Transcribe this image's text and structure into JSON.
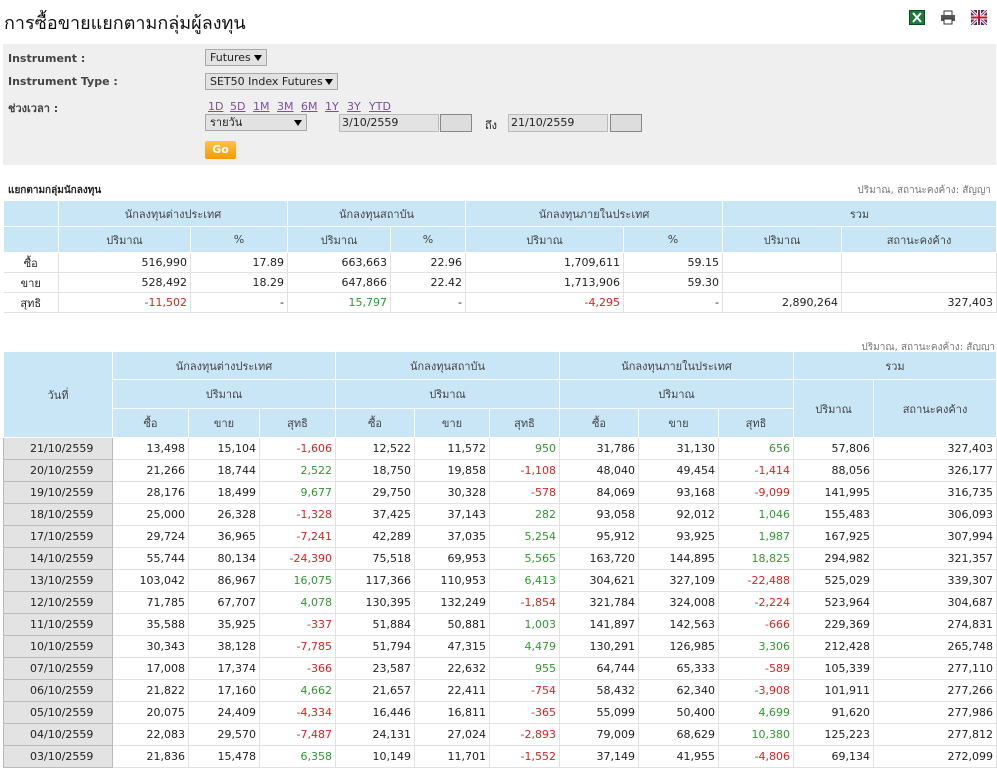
{
  "header": {
    "title": "การซื้อขายแยกตามกลุ่มผู้ลงทุน"
  },
  "form": {
    "instrument": {
      "label": "Instrument :",
      "value": "Futures"
    },
    "instrument_type": {
      "label": "Instrument Type :",
      "value": "SET50 Index Futures"
    },
    "period": {
      "label": "ช่วงเวลา :",
      "ranges": [
        "1D",
        "5D",
        "1M",
        "3M",
        "6M",
        "1Y",
        "3Y",
        "YTD"
      ],
      "interval": "รายวัน",
      "from": "3/10/2559",
      "to_label": "ถึง",
      "to": "21/10/2559"
    },
    "button": "Go"
  },
  "summary": {
    "title": "แยกตามกลุ่มนักลงทุน",
    "unit_note": "ปริมาณ, สถานะคงค้าง: สัญญา",
    "groups": [
      "นักลงทุนต่างประเทศ",
      "นักลงทุนสถาบัน",
      "นักลงทุนภายในประเทศ",
      "รวม"
    ],
    "columns": [
      "ปริมาณ",
      "%",
      "ปริมาณ",
      "%",
      "ปริมาณ",
      "%",
      "ปริมาณ",
      "สถานะคงค้าง"
    ],
    "rows": [
      {
        "label": "ซื้อ",
        "cells": [
          "516,990",
          "17.89",
          "663,663",
          "22.96",
          "1,709,611",
          "59.15"
        ]
      },
      {
        "label": "ขาย",
        "cells": [
          "528,492",
          "18.29",
          "647,866",
          "22.42",
          "1,713,906",
          "59.30"
        ]
      },
      {
        "label": "สุทธิ",
        "cells": [
          "-11,502",
          "-",
          "15,797",
          "-",
          "-4,295",
          "-",
          "2,890,264",
          "327,403"
        ]
      }
    ]
  },
  "daily": {
    "unit_note": "ปริมาณ, สถานะคงค้าง: สัญญา",
    "date_header": "วันที่",
    "groups": [
      "นักลงทุนต่างประเทศ",
      "นักลงทุนสถาบัน",
      "นักลงทุนภายในประเทศ",
      "รวม"
    ],
    "volume_headers": [
      "ปริมาณ",
      "ปริมาณ",
      "ปริมาณ"
    ],
    "side_headers": [
      "ซื้อ",
      "ขาย",
      "สุทธิ",
      "ซื้อ",
      "ขาย",
      "สุทธิ",
      "ซื้อ",
      "ขาย",
      "สุทธิ"
    ],
    "total_headers": [
      "ปริมาณ",
      "สถานะคงค้าง"
    ],
    "rows": [
      [
        "21/10/2559",
        "13,498",
        "15,104",
        "-1,606",
        "12,522",
        "11,572",
        "950",
        "31,786",
        "31,130",
        "656",
        "57,806",
        "327,403"
      ],
      [
        "20/10/2559",
        "21,266",
        "18,744",
        "2,522",
        "18,750",
        "19,858",
        "-1,108",
        "48,040",
        "49,454",
        "-1,414",
        "88,056",
        "326,177"
      ],
      [
        "19/10/2559",
        "28,176",
        "18,499",
        "9,677",
        "29,750",
        "30,328",
        "-578",
        "84,069",
        "93,168",
        "-9,099",
        "141,995",
        "316,735"
      ],
      [
        "18/10/2559",
        "25,000",
        "26,328",
        "-1,328",
        "37,425",
        "37,143",
        "282",
        "93,058",
        "92,012",
        "1,046",
        "155,483",
        "306,093"
      ],
      [
        "17/10/2559",
        "29,724",
        "36,965",
        "-7,241",
        "42,289",
        "37,035",
        "5,254",
        "95,912",
        "93,925",
        "1,987",
        "167,925",
        "307,994"
      ],
      [
        "14/10/2559",
        "55,744",
        "80,134",
        "-24,390",
        "75,518",
        "69,953",
        "5,565",
        "163,720",
        "144,895",
        "18,825",
        "294,982",
        "321,357"
      ],
      [
        "13/10/2559",
        "103,042",
        "86,967",
        "16,075",
        "117,366",
        "110,953",
        "6,413",
        "304,621",
        "327,109",
        "-22,488",
        "525,029",
        "339,307"
      ],
      [
        "12/10/2559",
        "71,785",
        "67,707",
        "4,078",
        "130,395",
        "132,249",
        "-1,854",
        "321,784",
        "324,008",
        "-2,224",
        "523,964",
        "304,687"
      ],
      [
        "11/10/2559",
        "35,588",
        "35,925",
        "-337",
        "51,884",
        "50,881",
        "1,003",
        "141,897",
        "142,563",
        "-666",
        "229,369",
        "274,831"
      ],
      [
        "10/10/2559",
        "30,343",
        "38,128",
        "-7,785",
        "51,794",
        "47,315",
        "4,479",
        "130,291",
        "126,985",
        "3,306",
        "212,428",
        "265,748"
      ],
      [
        "07/10/2559",
        "17,008",
        "17,374",
        "-366",
        "23,587",
        "22,632",
        "955",
        "64,744",
        "65,333",
        "-589",
        "105,339",
        "277,110"
      ],
      [
        "06/10/2559",
        "21,822",
        "17,160",
        "4,662",
        "21,657",
        "22,411",
        "-754",
        "58,432",
        "62,340",
        "-3,908",
        "101,911",
        "277,266"
      ],
      [
        "05/10/2559",
        "20,075",
        "24,409",
        "-4,334",
        "16,446",
        "16,811",
        "-365",
        "55,099",
        "50,400",
        "4,699",
        "91,620",
        "277,986"
      ],
      [
        "04/10/2559",
        "22,083",
        "29,570",
        "-7,487",
        "24,131",
        "27,024",
        "-2,893",
        "79,009",
        "68,629",
        "10,380",
        "125,223",
        "277,812"
      ],
      [
        "03/10/2559",
        "21,836",
        "15,478",
        "6,358",
        "10,149",
        "11,701",
        "-1,552",
        "37,149",
        "41,955",
        "-4,806",
        "69,134",
        "272,099"
      ]
    ]
  }
}
